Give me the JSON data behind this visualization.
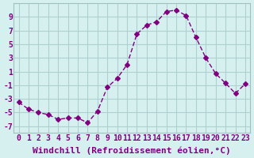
{
  "x": [
    0,
    1,
    2,
    3,
    4,
    5,
    6,
    7,
    8,
    9,
    10,
    11,
    12,
    13,
    14,
    15,
    16,
    17,
    18,
    19,
    20,
    21,
    22,
    23
  ],
  "y": [
    -3.5,
    -4.5,
    -5.0,
    -5.3,
    -6.0,
    -5.8,
    -5.8,
    -6.5,
    -4.8,
    -1.3,
    0.0,
    2.0,
    6.5,
    7.8,
    8.3,
    9.8,
    10.0,
    9.2,
    6.0,
    3.0,
    0.7,
    -0.7,
    -2.2,
    -0.8
  ],
  "line_color": "#800080",
  "marker": "D",
  "marker_size": 3,
  "bg_color": "#d6f0f0",
  "grid_color": "#b0d0d0",
  "xlabel": "Windchill (Refroidissement éolien,°C)",
  "xlabel_fontsize": 8,
  "tick_fontsize": 7,
  "xlim": [
    -0.5,
    23.5
  ],
  "ylim": [
    -8,
    11
  ],
  "yticks": [
    -7,
    -5,
    -3,
    -1,
    1,
    3,
    5,
    7,
    9
  ],
  "xticks": [
    0,
    1,
    2,
    3,
    4,
    5,
    6,
    7,
    8,
    9,
    10,
    11,
    12,
    13,
    14,
    15,
    16,
    17,
    18,
    19,
    20,
    21,
    22,
    23
  ]
}
